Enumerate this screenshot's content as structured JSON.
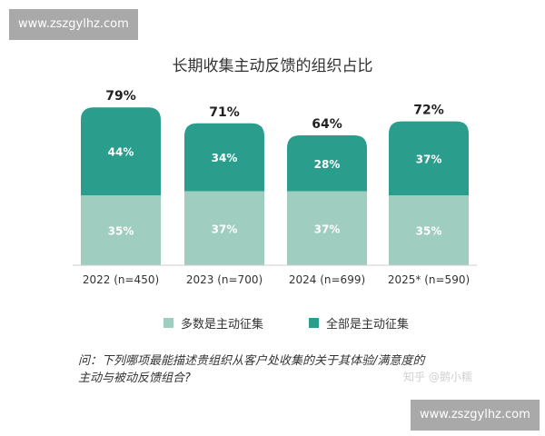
{
  "watermarks": {
    "top": "www.zszgylhz.com",
    "bottom": "www.zszgylhz.com",
    "zhihu": "知乎 @鹅小糯"
  },
  "colors": {
    "part": "#9fcdbf",
    "all": "#2b9d8c"
  },
  "chart_data": {
    "type": "bar",
    "stacked": true,
    "title": "长期收集主动反馈的组织占比",
    "categories": [
      "2022 (n=450)",
      "2023 (n=700)",
      "2024 (n=699)",
      "2025* (n=590)"
    ],
    "series": [
      {
        "name": "多数是主动征集",
        "values": [
          35,
          37,
          37,
          35
        ]
      },
      {
        "name": "全部是主动征集",
        "values": [
          44,
          34,
          28,
          37
        ]
      }
    ],
    "totals": [
      "79%",
      "71%",
      "64%",
      "72%"
    ],
    "legend": "bottom"
  },
  "question": {
    "line1": "问：下列哪项最能描述贵组织从客户处收集的关于其体验/满意度的",
    "line2": "主动与被动反馈组合?"
  }
}
